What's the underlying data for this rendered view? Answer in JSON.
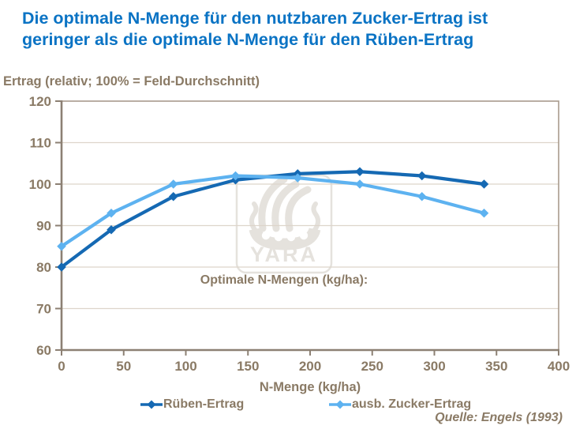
{
  "title": {
    "line1": "Die optimale N-Menge für den nutzbaren Zucker-Ertrag ist",
    "line2": "geringer als die optimale N-Menge für den Rüben-Ertrag"
  },
  "source": {
    "text": "Quelle: Engels (1993)"
  },
  "watermark": {
    "text": "YARA"
  },
  "colors": {
    "title_blue": "#0a73c4",
    "text_brown": "#8a7a65",
    "axis": "#8c8073",
    "border": "#a89b8d",
    "gridline": "#ddd5cb",
    "watermark_gray": "#e5e2dd",
    "background": "#ffffff"
  },
  "chart_data": {
    "type": "line",
    "title": "",
    "xlabel": "N-Menge (kg/ha)",
    "ylabel": "Ertrag (relativ; 100% = Feld-Durchschnitt)",
    "annotation": "Optimale N-Mengen (kg/ha):",
    "x": [
      0,
      40,
      90,
      140,
      190,
      240,
      290,
      340
    ],
    "series": [
      {
        "name": "Rüben-Ertrag",
        "color": "#1569b3",
        "values": [
          80,
          89,
          97,
          101,
          102.5,
          103,
          102,
          100
        ]
      },
      {
        "name": "ausb. Zucker-Ertrag",
        "color": "#5db2f0",
        "values": [
          85,
          93,
          100,
          102,
          101.5,
          100,
          97,
          93
        ]
      }
    ],
    "xlim": [
      0,
      400
    ],
    "ylim": [
      60,
      120
    ],
    "x_ticks": [
      0,
      50,
      100,
      150,
      200,
      250,
      300,
      350,
      400
    ],
    "y_ticks": [
      60,
      70,
      80,
      90,
      100,
      110,
      120
    ],
    "grid": "horizontal",
    "legend_position": "bottom",
    "marker": "diamond"
  }
}
